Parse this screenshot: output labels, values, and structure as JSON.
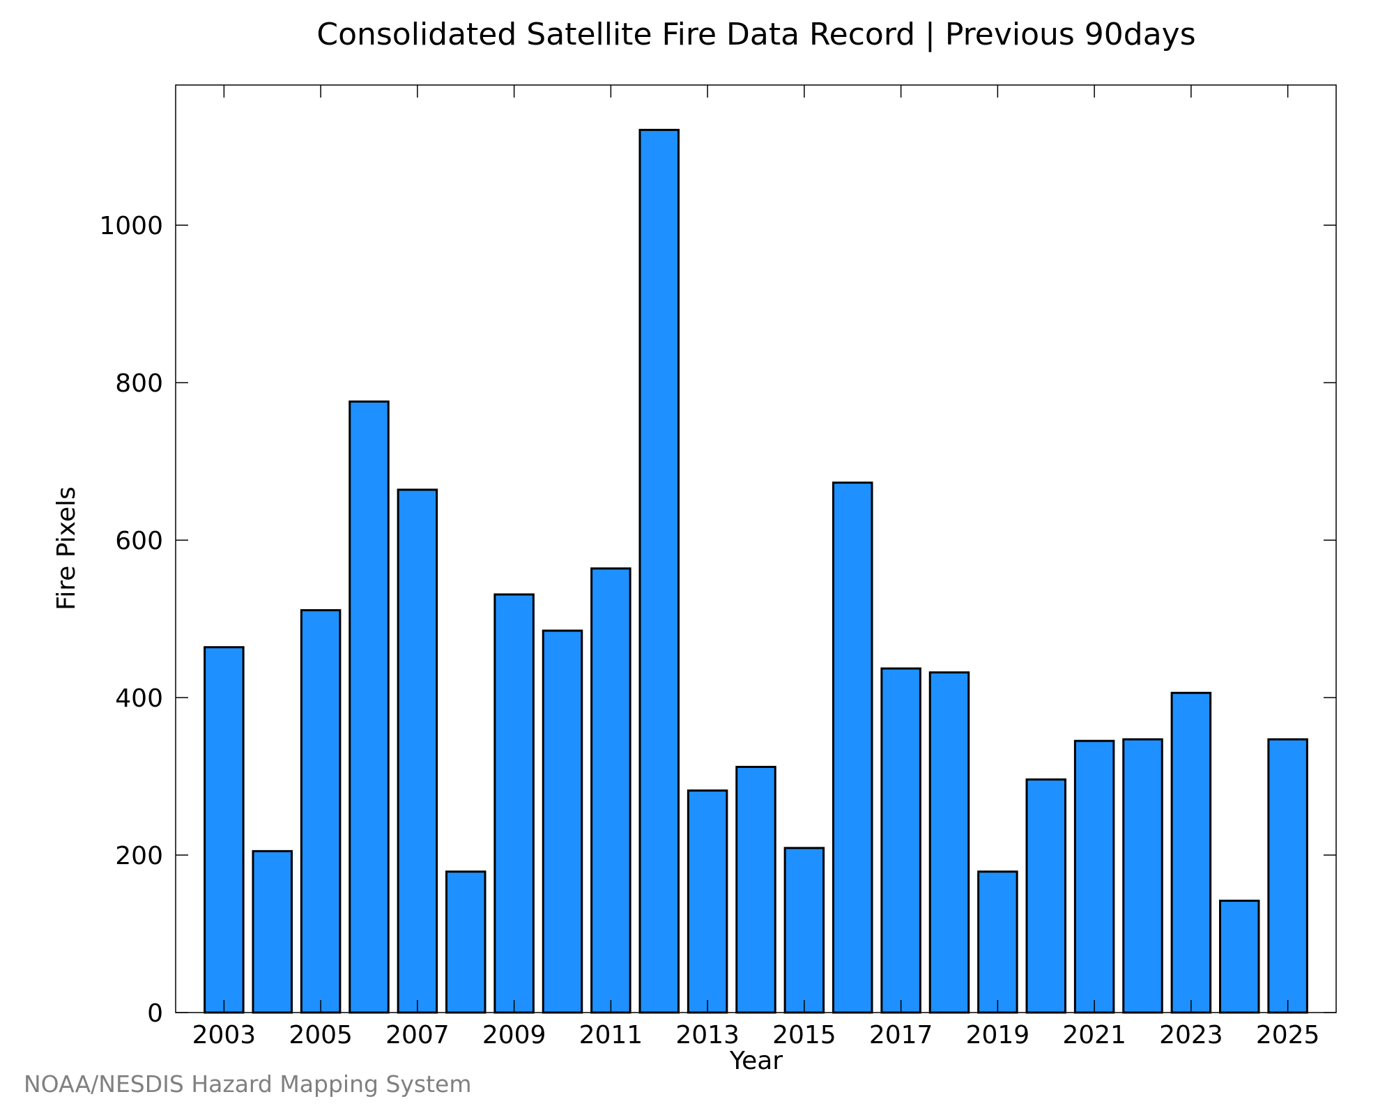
{
  "chart_data": {
    "type": "bar",
    "title": "Consolidated Satellite Fire Data Record | Previous 90days",
    "xlabel": "Year",
    "ylabel": "Fire Pixels",
    "categories": [
      "2003",
      "2004",
      "2005",
      "2006",
      "2007",
      "2008",
      "2009",
      "2010",
      "2011",
      "2012",
      "2013",
      "2014",
      "2015",
      "2016",
      "2017",
      "2018",
      "2019",
      "2020",
      "2021",
      "2022",
      "2023",
      "2024",
      "2025"
    ],
    "values": [
      464,
      205,
      511,
      776,
      664,
      179,
      531,
      485,
      564,
      1121,
      282,
      312,
      209,
      673,
      437,
      432,
      179,
      296,
      345,
      347,
      406,
      142,
      347
    ],
    "x_tick_labels": [
      "2003",
      "2005",
      "2007",
      "2009",
      "2011",
      "2013",
      "2015",
      "2017",
      "2019",
      "2021",
      "2023",
      "2025"
    ],
    "y_ticks": [
      0,
      200,
      400,
      600,
      800,
      1000
    ],
    "ylim": [
      0,
      1178
    ],
    "grid": false,
    "bar_color": "#1e90ff",
    "bar_edge_color": "#000000"
  },
  "footer": "NOAA/NESDIS Hazard Mapping System"
}
